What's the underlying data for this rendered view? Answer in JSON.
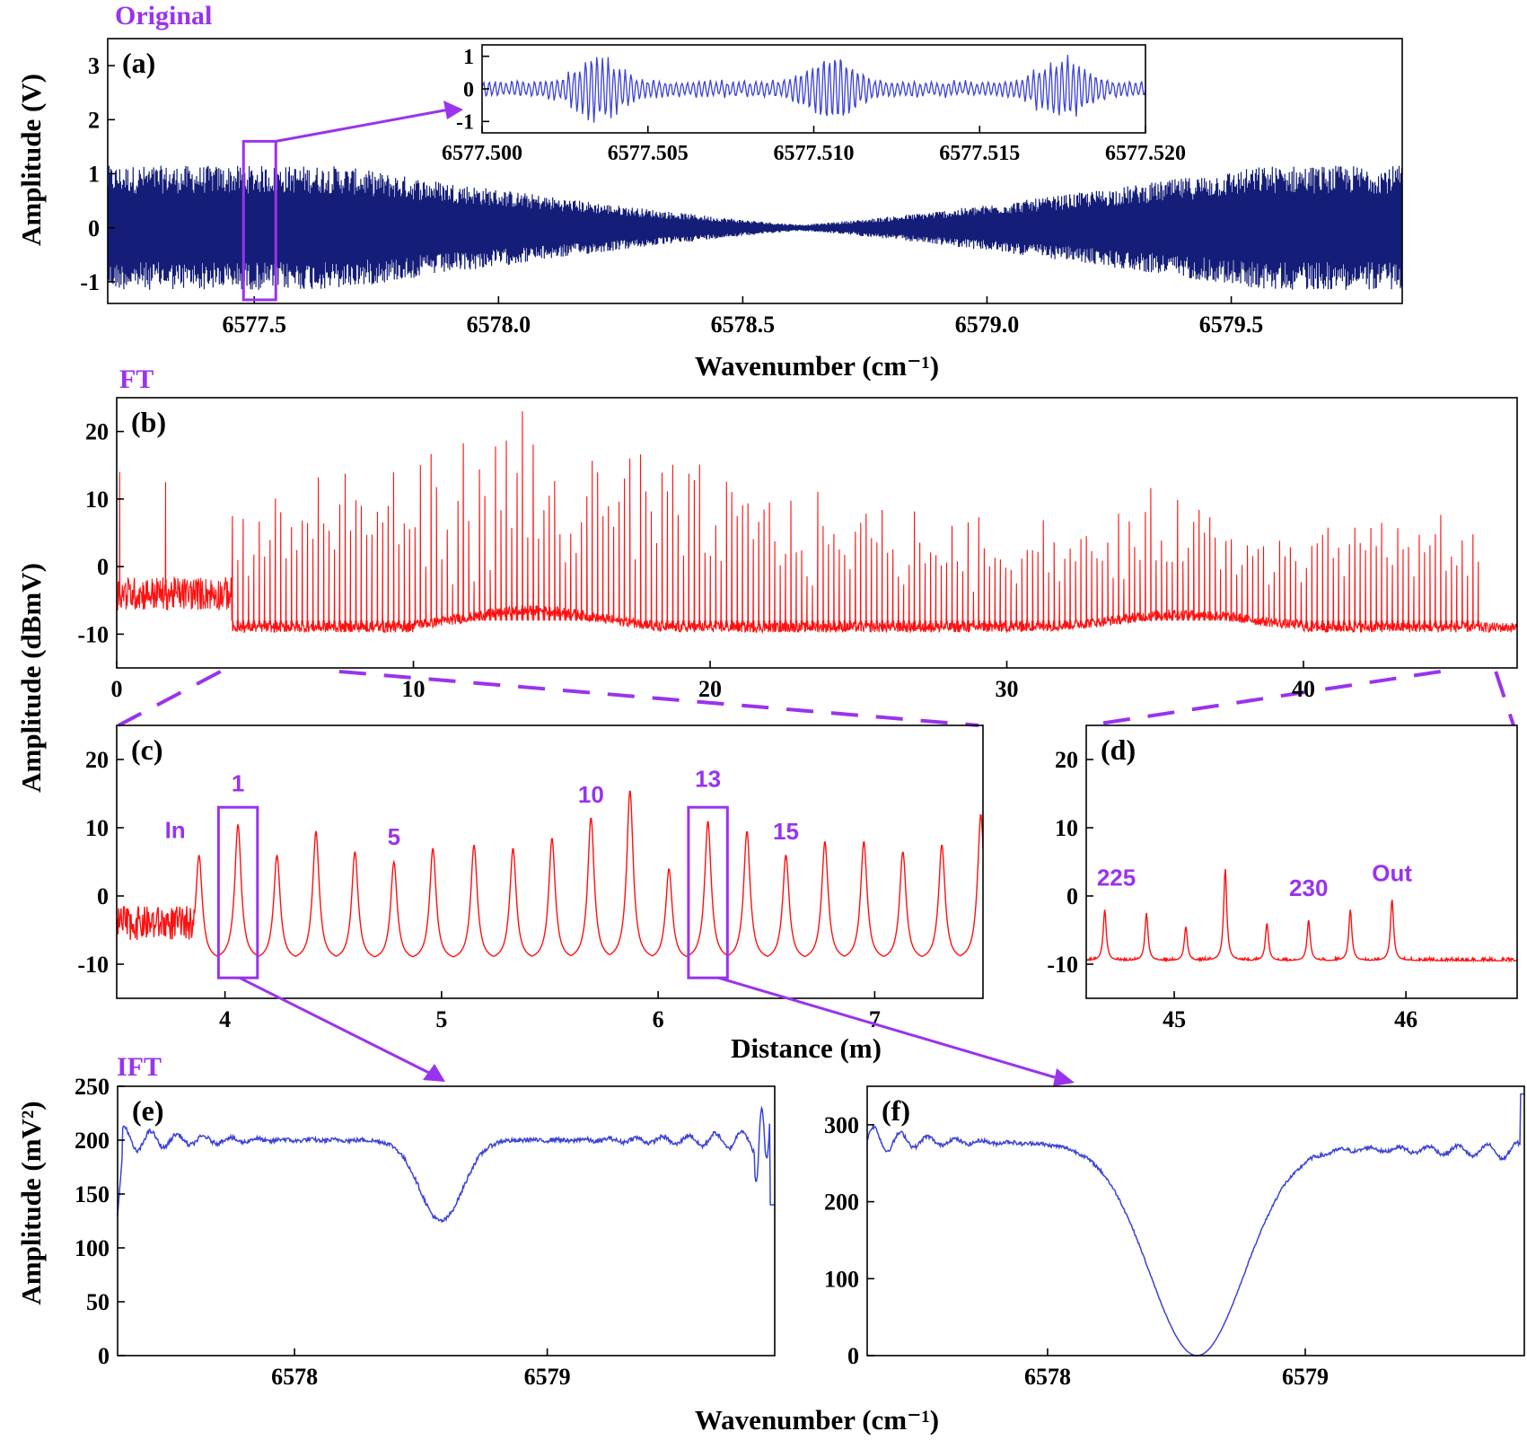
{
  "sections": {
    "original": "Original",
    "ft": "FT",
    "ift": "IFT"
  },
  "colors": {
    "accent": "#9933ee",
    "ift_line": "#3b43d6",
    "ft_line": "#ff1010",
    "orig_line": "#141e78"
  },
  "ylabels": {
    "a": "Amplitude (V)",
    "bcd": "Amplitude (dBmV)",
    "ef": "Amplitude (mV²)"
  },
  "xlabels": {
    "wavenumber_top": "Wavenumber (cm⁻¹)",
    "distance": "Distance (m)",
    "wavenumber_bottom": "Wavenumber (cm⁻¹)"
  },
  "chart_data": [
    {
      "id": "a",
      "panel_label": "(a)",
      "type": "line",
      "series": [
        {
          "description": "interferogram signal",
          "color": "#141e78"
        }
      ],
      "xlim": [
        6577.2,
        6579.85
      ],
      "ylim": [
        -1.4,
        3.5
      ],
      "xticks": [
        6577.5,
        6578.0,
        6578.5,
        6579.0,
        6579.5
      ],
      "xtick_labels": [
        "6577.5",
        "6578.0",
        "6578.5",
        "6579.0",
        "6579.5"
      ],
      "yticks": [
        -1,
        0,
        1,
        2,
        3
      ],
      "ytick_labels": [
        "-1",
        "0",
        "1",
        "2",
        "3"
      ],
      "envelope": {
        "max_amplitude": 1.15,
        "min_center": 6578.62,
        "min_amplitude": 0.06
      },
      "zoom_box": {
        "x": [
          6577.5,
          6577.53
        ],
        "y": [
          -1.4,
          1.6
        ]
      }
    },
    {
      "id": "a_inset",
      "type": "line",
      "xlim": [
        6577.5,
        6577.52
      ],
      "ylim": [
        -1.35,
        1.35
      ],
      "xticks": [
        6577.5,
        6577.505,
        6577.51,
        6577.515,
        6577.52
      ],
      "xtick_labels": [
        "6577.500",
        "6577.505",
        "6577.510",
        "6577.515",
        "6577.520"
      ],
      "yticks": [
        -1,
        0,
        1
      ],
      "ytick_labels": [
        "-1",
        "0",
        "1"
      ],
      "bursts": [
        6577.5035,
        6577.5105,
        6577.5175
      ]
    },
    {
      "id": "b",
      "panel_label": "(b)",
      "type": "line",
      "xlim": [
        0,
        47.2
      ],
      "ylim": [
        -15,
        25
      ],
      "xticks": [
        0,
        10,
        20,
        30,
        40
      ],
      "xtick_labels": [
        "0",
        "10",
        "20",
        "30",
        "40"
      ],
      "yticks": [
        -10,
        0,
        10,
        20
      ],
      "ytick_labels": [
        "-10",
        "0",
        "10",
        "20"
      ],
      "noise_floor": -9,
      "peak_region": [
        3.9,
        45.9
      ],
      "max_peak": {
        "x": 13.7,
        "y": 23
      }
    },
    {
      "id": "c",
      "panel_label": "(c)",
      "type": "line",
      "xlim": [
        3.5,
        7.5
      ],
      "ylim": [
        -15,
        25
      ],
      "xticks": [
        4,
        5,
        6,
        7
      ],
      "xtick_labels": [
        "4",
        "5",
        "6",
        "7"
      ],
      "yticks": [
        -10,
        0,
        10,
        20
      ],
      "ytick_labels": [
        "-10",
        "0",
        "10",
        "20"
      ],
      "peaks": [
        {
          "x": 3.88,
          "y": 6
        },
        {
          "x": 4.06,
          "y": 10.5
        },
        {
          "x": 4.24,
          "y": 6
        },
        {
          "x": 4.42,
          "y": 9.5
        },
        {
          "x": 4.6,
          "y": 6.5
        },
        {
          "x": 4.78,
          "y": 5
        },
        {
          "x": 4.96,
          "y": 7
        },
        {
          "x": 5.15,
          "y": 7.5
        },
        {
          "x": 5.33,
          "y": 7
        },
        {
          "x": 5.51,
          "y": 8.5
        },
        {
          "x": 5.69,
          "y": 11.5
        },
        {
          "x": 5.87,
          "y": 15.5
        },
        {
          "x": 6.05,
          "y": 4
        },
        {
          "x": 6.23,
          "y": 11
        },
        {
          "x": 6.41,
          "y": 9.5
        },
        {
          "x": 6.59,
          "y": 6
        },
        {
          "x": 6.77,
          "y": 8
        },
        {
          "x": 6.95,
          "y": 8
        },
        {
          "x": 7.13,
          "y": 6.5
        },
        {
          "x": 7.31,
          "y": 7.5
        },
        {
          "x": 7.49,
          "y": 12
        }
      ],
      "annotations": [
        {
          "text": "In",
          "x": 3.77,
          "y": 8.5
        },
        {
          "text": "1",
          "x": 4.06,
          "y": 15.3
        },
        {
          "text": "5",
          "x": 4.78,
          "y": 7.5
        },
        {
          "text": "10",
          "x": 5.69,
          "y": 13.7
        },
        {
          "text": "13",
          "x": 6.23,
          "y": 16
        },
        {
          "text": "15",
          "x": 6.59,
          "y": 8.3
        }
      ],
      "boxes": [
        {
          "x": [
            3.97,
            4.15
          ],
          "y": [
            -12,
            13
          ]
        },
        {
          "x": [
            6.14,
            6.32
          ],
          "y": [
            -12,
            13
          ]
        }
      ]
    },
    {
      "id": "d",
      "panel_label": "(d)",
      "type": "line",
      "xlim": [
        44.62,
        46.48
      ],
      "ylim": [
        -15,
        25
      ],
      "xticks": [
        45,
        46
      ],
      "xtick_labels": [
        "45",
        "46"
      ],
      "yticks": [
        -10,
        0,
        10,
        20
      ],
      "ytick_labels": [
        "-10",
        "0",
        "10",
        "20"
      ],
      "peaks": [
        {
          "x": 44.7,
          "y": -2
        },
        {
          "x": 44.88,
          "y": -2.5
        },
        {
          "x": 45.05,
          "y": -4.5
        },
        {
          "x": 45.22,
          "y": 4
        },
        {
          "x": 45.4,
          "y": -4
        },
        {
          "x": 45.58,
          "y": -3.5
        },
        {
          "x": 45.76,
          "y": -2
        },
        {
          "x": 45.94,
          "y": -0.5
        }
      ],
      "annotations": [
        {
          "text": "225",
          "x": 44.75,
          "y": 1.5
        },
        {
          "text": "230",
          "x": 45.58,
          "y": 0
        },
        {
          "text": "Out",
          "x": 45.94,
          "y": 2.2
        }
      ]
    },
    {
      "id": "e",
      "panel_label": "(e)",
      "type": "line",
      "xlim": [
        6577.3,
        6579.9
      ],
      "ylim": [
        0,
        250
      ],
      "xticks": [
        6578,
        6579
      ],
      "xtick_labels": [
        "6578",
        "6579"
      ],
      "yticks": [
        0,
        50,
        100,
        150,
        200,
        250
      ],
      "ytick_labels": [
        "0",
        "50",
        "100",
        "150",
        "200",
        "250"
      ],
      "baseline": 200,
      "dip": {
        "x": 6578.58,
        "y": 125
      }
    },
    {
      "id": "f",
      "panel_label": "(f)",
      "type": "line",
      "xlim": [
        6577.3,
        6579.85
      ],
      "ylim": [
        0,
        350
      ],
      "xticks": [
        6578,
        6579
      ],
      "xtick_labels": [
        "6578",
        "6579"
      ],
      "yticks": [
        0,
        100,
        200,
        300
      ],
      "ytick_labels": [
        "0",
        "100",
        "200",
        "300"
      ],
      "baseline_left": 280,
      "baseline_right": 265,
      "dip": {
        "x": 6578.58,
        "y": 0
      }
    }
  ]
}
